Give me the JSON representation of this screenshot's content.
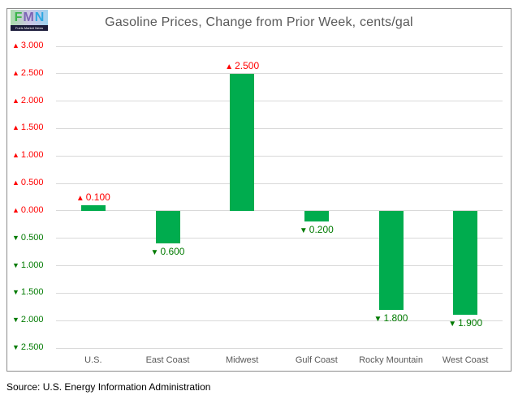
{
  "logo": {
    "letters": [
      "F",
      "M",
      "N"
    ],
    "subtext": "Fuels Market News"
  },
  "chart_data": {
    "type": "bar",
    "title": "Gasoline Prices, Change from Prior Week, cents/gal",
    "categories": [
      "U.S.",
      "East Coast",
      "Midwest",
      "Gulf Coast",
      "Rocky Mountain",
      "West Coast"
    ],
    "values": [
      0.1,
      -0.6,
      2.5,
      -0.2,
      -1.8,
      -1.9
    ],
    "value_labels": [
      "0.100",
      "0.600",
      "2.500",
      "0.200",
      "1.800",
      "1.900"
    ],
    "ylim": [
      -2.5,
      3.0
    ],
    "ytick_step": 0.5,
    "ytick_label_decimals": 3,
    "grid": true,
    "legend": "none",
    "up_marker": "▲",
    "down_marker": "▼",
    "bar_color": "#00AC4E",
    "up_label_color": "#FF0000",
    "down_label_color": "#007A00",
    "gridline_color": "#D9D9D9",
    "axis_text_color": "#595959"
  },
  "source": "Source: U.S. Energy Information Administration"
}
